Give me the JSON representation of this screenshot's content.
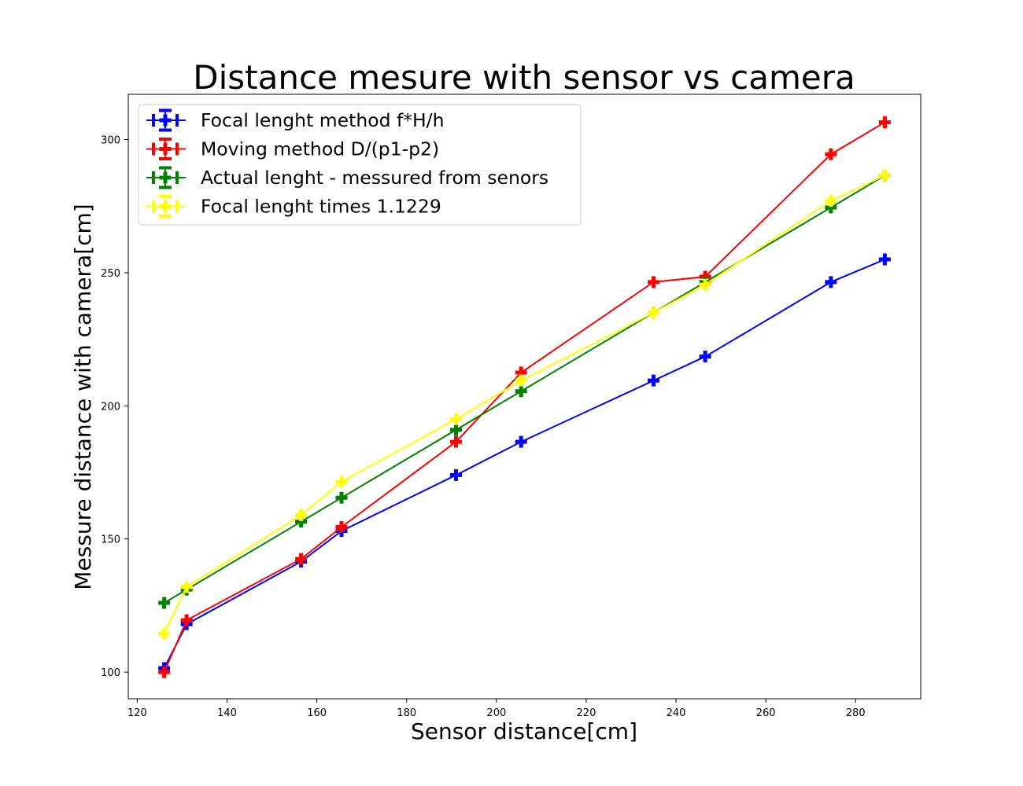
{
  "chart_data": {
    "type": "line",
    "title": "Distance mesure with sensor vs camera",
    "xlabel": "Sensor distance[cm]",
    "ylabel": "Messure distance with camera[cm]",
    "xlim": [
      118,
      294.5
    ],
    "ylim": [
      90,
      317
    ],
    "xticks": [
      120,
      140,
      160,
      180,
      200,
      220,
      240,
      260,
      280
    ],
    "yticks": [
      100,
      150,
      200,
      250,
      300
    ],
    "grid": false,
    "legend_position": "top-left",
    "marker": "plus",
    "series": [
      {
        "name": "Focal lenght method f*H/h",
        "color": "#0000ff",
        "x": [
          126,
          131,
          156.5,
          165.5,
          191,
          205.5,
          235,
          246.5,
          274.5,
          286.5
        ],
        "y": [
          101.5,
          118,
          141.5,
          153,
          174,
          186.5,
          209.5,
          218.5,
          246.5,
          255
        ]
      },
      {
        "name": "Moving method  D/(p1-p2)",
        "color": "#ff0000",
        "x": [
          126,
          131,
          156.5,
          165.5,
          191,
          205.5,
          235,
          246.5,
          274.5,
          286.5
        ],
        "y": [
          100,
          119.5,
          142.5,
          154.5,
          186.5,
          212.5,
          246.5,
          248.5,
          294.5,
          306.5
        ]
      },
      {
        "name": "Actual lenght - messured from senors",
        "color": "#008000",
        "x": [
          126,
          131,
          156.5,
          165.5,
          191,
          205.5,
          235,
          246.5,
          274.5,
          286.5
        ],
        "y": [
          126,
          131,
          156.5,
          165.5,
          191,
          205.5,
          235,
          246.5,
          274.5,
          286.5
        ]
      },
      {
        "name": "Focal lenght times 1.1229",
        "color": "#ffff00",
        "x": [
          126,
          131,
          156.5,
          165.5,
          191,
          205.5,
          235,
          246.5,
          274.5,
          286.5
        ],
        "y": [
          114.5,
          132,
          159,
          171.5,
          195,
          209.5,
          235,
          245.5,
          277,
          286.5
        ]
      }
    ]
  }
}
